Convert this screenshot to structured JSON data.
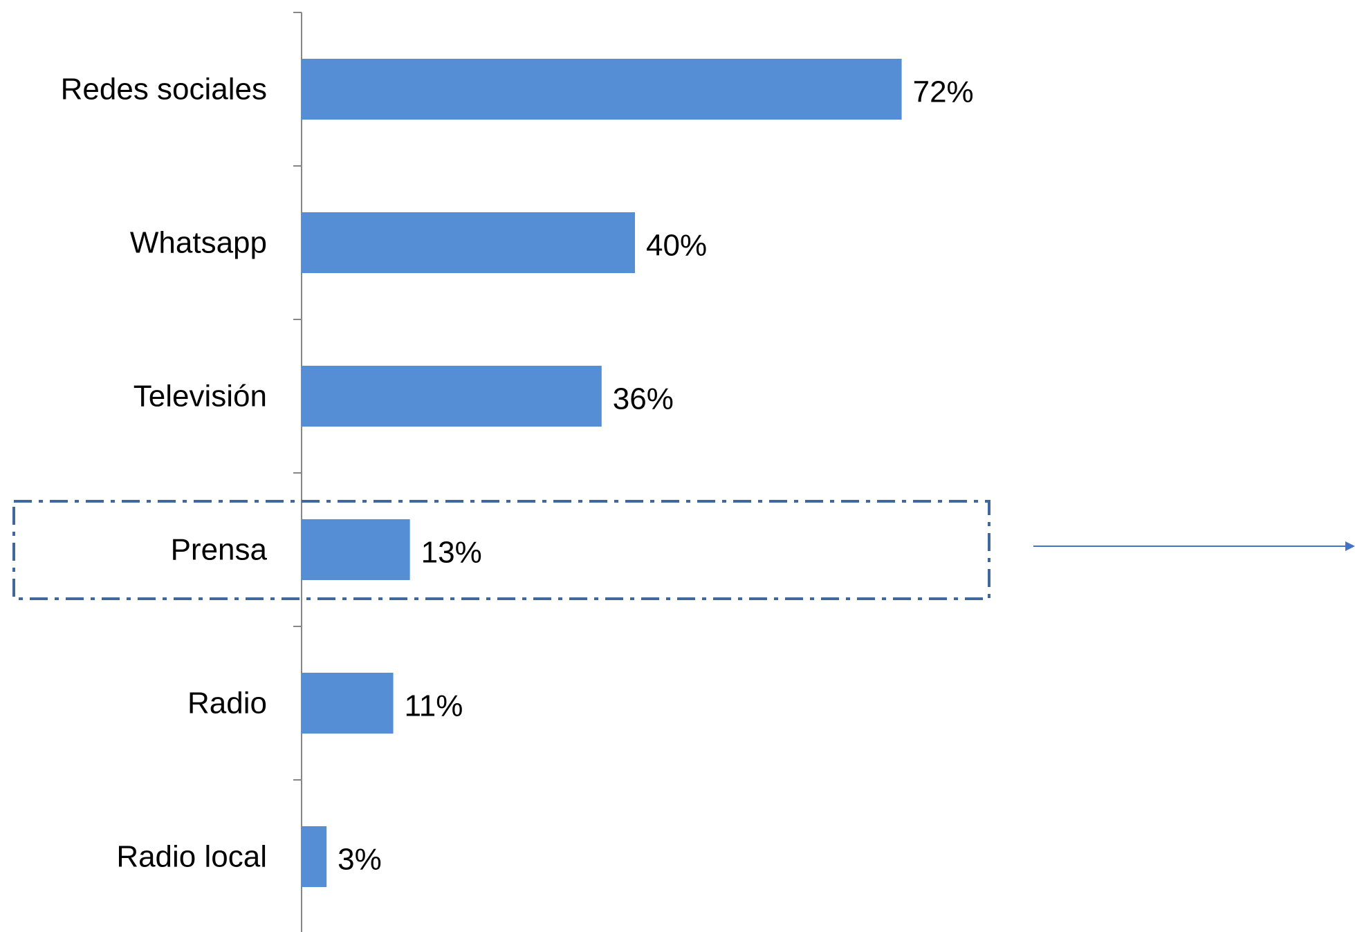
{
  "chart_data": {
    "type": "bar",
    "orientation": "horizontal",
    "categories": [
      "Redes sociales",
      "Whatsapp",
      "Televisión",
      "Prensa",
      "Radio",
      "Radio local"
    ],
    "values": [
      72,
      40,
      36,
      13,
      11,
      3
    ],
    "value_labels": [
      "72%",
      "40%",
      "36%",
      "13%",
      "11%",
      "3%"
    ],
    "unit": "%",
    "title": "",
    "xlabel": "",
    "ylabel": "",
    "xlim": [
      0,
      100
    ],
    "grid": false,
    "legend": "none",
    "highlighted_category": "Prensa",
    "colors": {
      "bar": "#558ED5",
      "axis": "#868686",
      "highlight_box": "#41689C",
      "arrow": "#4472C4"
    }
  }
}
